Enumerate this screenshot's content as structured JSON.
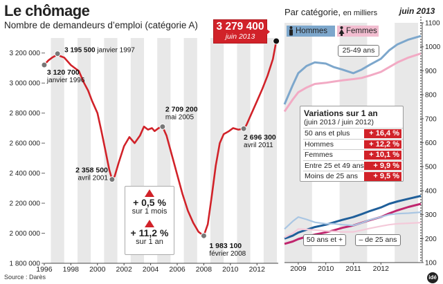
{
  "title": "Le chômage",
  "subtitle": "Nombre de demandeurs d’emploi (catégorie A)",
  "source": "Source : Darès",
  "logo": "idé",
  "highlight": {
    "value": "3 279 400",
    "date": "juin 2013"
  },
  "changes": [
    {
      "value": "+ 0,5 %",
      "label": "sur 1 mois"
    },
    {
      "value": "+ 11,2 %",
      "label": "sur 1 an"
    }
  ],
  "category_panel": {
    "title": "Par catégorie,",
    "title_small": "en milliers",
    "date": "juin 2013",
    "legend": [
      {
        "label": "Hommes",
        "color": "#5f93c3"
      },
      {
        "label": "Femmes",
        "color": "#f0a4c1"
      }
    ],
    "labels": {
      "adults": "25-49 ans",
      "seniors": "50 ans et +",
      "youth": "– de 25 ans"
    }
  },
  "variations": {
    "title": "Variations sur 1 an",
    "subtitle": "(juin 2013 / juin 2012)",
    "rows": [
      {
        "label": "50 ans et plus",
        "value": "+ 16,4 %"
      },
      {
        "label": "Hommes",
        "value": "+ 12,2 %"
      },
      {
        "label": "Femmes",
        "value": "+ 10,1 %"
      },
      {
        "label": "Entre 25 et 49 ans",
        "value": "+ 9,9 %"
      },
      {
        "label": "Moins de 25 ans",
        "value": "+ 9,5 %"
      }
    ]
  },
  "chart_data": [
    {
      "type": "line",
      "title": "Nombre de demandeurs d’emploi (catégorie A)",
      "xlabel": "",
      "ylabel": "",
      "xlim": [
        1995.9,
        2013.6
      ],
      "ylim": [
        1800000,
        3300000
      ],
      "x_ticks": [
        "1996",
        "1998",
        "2000",
        "2002",
        "2004",
        "2006",
        "2008",
        "2010",
        "2012"
      ],
      "y_ticks": [
        "1 800 000",
        "2 000 000",
        "2 200 000",
        "2 400 000",
        "2 600 000",
        "2 800 000",
        "3 000 000",
        "3 200 000"
      ],
      "color": "#d12229",
      "x": [
        1996.0,
        1996.3,
        1996.6,
        1996.9,
        1997.0,
        1997.2,
        1997.5,
        1997.8,
        1998.0,
        1998.3,
        1998.6,
        1999.0,
        1999.3,
        1999.6,
        2000.0,
        2000.3,
        2000.6,
        2000.9,
        2001.1,
        2001.3,
        2001.6,
        2002.0,
        2002.4,
        2002.8,
        2003.2,
        2003.5,
        2003.8,
        2004.1,
        2004.3,
        2004.6,
        2004.9,
        2005.2,
        2005.6,
        2006.0,
        2006.4,
        2006.8,
        2007.2,
        2007.6,
        2008.0,
        2008.3,
        2008.6,
        2008.9,
        2009.2,
        2009.5,
        2009.9,
        2010.2,
        2010.6,
        2011.0,
        2011.2,
        2011.6,
        2012.0,
        2012.4,
        2012.8,
        2013.2,
        2013.45
      ],
      "values": [
        3120700,
        3150000,
        3170000,
        3185000,
        3195500,
        3180000,
        3170000,
        3140000,
        3120000,
        3100000,
        3080000,
        3000000,
        2950000,
        2880000,
        2800000,
        2680000,
        2550000,
        2420000,
        2358500,
        2380000,
        2470000,
        2580000,
        2640000,
        2600000,
        2650000,
        2710000,
        2690000,
        2700000,
        2680000,
        2700000,
        2709200,
        2650000,
        2520000,
        2390000,
        2260000,
        2150000,
        2070000,
        2010000,
        1983100,
        2060000,
        2250000,
        2450000,
        2600000,
        2660000,
        2680000,
        2700000,
        2690000,
        2696300,
        2720000,
        2800000,
        2880000,
        2960000,
        3050000,
        3160000,
        3279400
      ],
      "annotations": [
        {
          "value": "3 120 700",
          "date": "janvier 1996"
        },
        {
          "value": "3 195 500",
          "date": "janvier 1997"
        },
        {
          "value": "2 358 500",
          "date": "avril 2001"
        },
        {
          "value": "2 709 200",
          "date": "mai 2005"
        },
        {
          "value": "1 983 100",
          "date": "février 2008"
        },
        {
          "value": "2 696 300",
          "date": "avril 2011"
        }
      ]
    },
    {
      "type": "line",
      "title": "Par catégorie, en milliers",
      "xlim": [
        2008.5,
        2013.5
      ],
      "ylim": [
        100,
        1100
      ],
      "x_ticks": [
        "2009",
        "2010",
        "2011",
        "2012"
      ],
      "y_ticks": [
        "100",
        "200",
        "300",
        "400",
        "500",
        "600",
        "700",
        "800",
        "900",
        "1000",
        "1100"
      ],
      "x": [
        2008.5,
        2008.8,
        2009.0,
        2009.3,
        2009.6,
        2010.0,
        2010.3,
        2010.6,
        2011.0,
        2011.3,
        2011.6,
        2012.0,
        2012.3,
        2012.6,
        2013.0,
        2013.45
      ],
      "series": [
        {
          "name": "Hommes 25-49 ans",
          "color": "#7da7cc",
          "values": [
            760,
            840,
            890,
            920,
            935,
            930,
            915,
            905,
            890,
            905,
            925,
            950,
            985,
            1010,
            1030,
            1045
          ]
        },
        {
          "name": "Femmes 25-49 ans",
          "color": "#f2aac4",
          "values": [
            730,
            780,
            810,
            830,
            845,
            850,
            855,
            860,
            865,
            870,
            880,
            895,
            915,
            935,
            955,
            972
          ]
        },
        {
          "name": "Hommes 50 ans et +",
          "color": "#1f5f9a",
          "values": [
            200,
            212,
            225,
            237,
            248,
            258,
            268,
            278,
            290,
            302,
            315,
            330,
            345,
            355,
            366,
            378
          ]
        },
        {
          "name": "Femmes 50 ans et +",
          "color": "#c0266e",
          "values": [
            178,
            188,
            198,
            208,
            217,
            226,
            235,
            245,
            255,
            266,
            277,
            290,
            305,
            318,
            332,
            345
          ]
        },
        {
          "name": "Hommes – de 25 ans",
          "color": "#a9c6e3",
          "values": [
            240,
            272,
            290,
            280,
            268,
            262,
            262,
            258,
            255,
            265,
            278,
            290,
            300,
            304,
            306,
            310
          ]
        },
        {
          "name": "Femmes – de 25 ans",
          "color": "#f4c9d9",
          "values": [
            205,
            222,
            240,
            238,
            236,
            232,
            230,
            228,
            228,
            235,
            243,
            252,
            258,
            262,
            264,
            267
          ]
        }
      ]
    }
  ]
}
